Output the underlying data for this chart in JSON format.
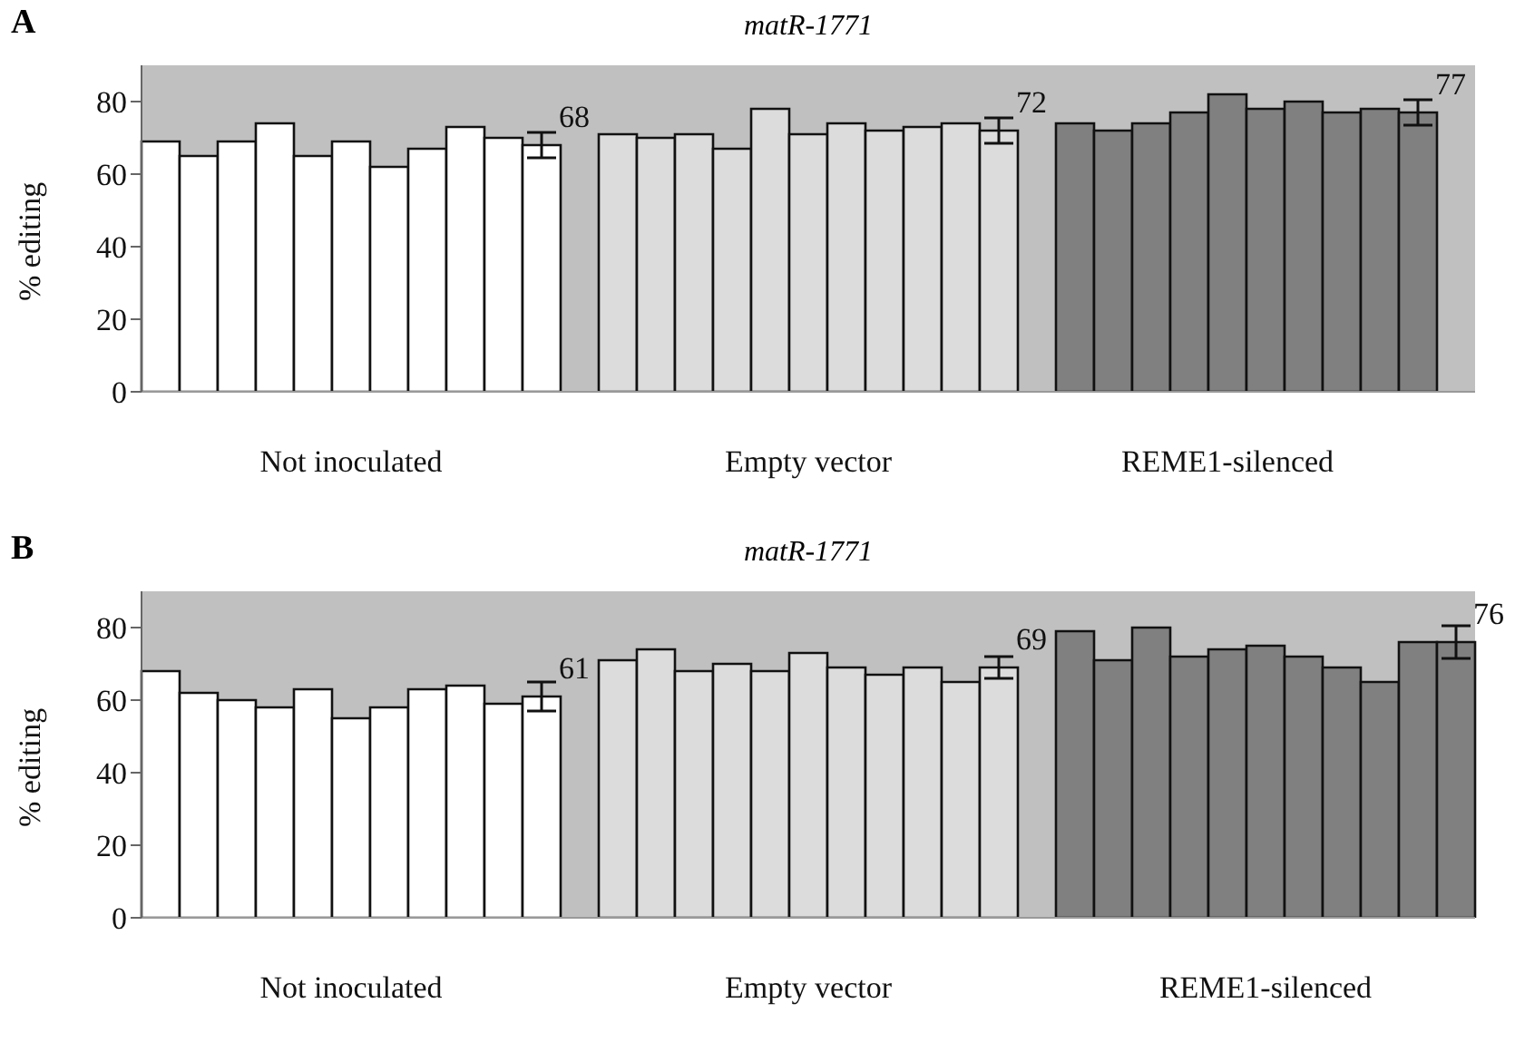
{
  "chart_data": [
    {
      "type": "bar",
      "title": "matR-1771",
      "ylabel": "% editing",
      "annotations": [
        "A"
      ],
      "categories": [
        null,
        null,
        null,
        null,
        null,
        "Not inoculated",
        null,
        null,
        null,
        null,
        null,
        null,
        null,
        null,
        null,
        null,
        null,
        "Empty vector",
        null,
        null,
        null,
        null,
        null,
        null,
        null,
        null,
        null,
        null,
        "REME1-silenced",
        null,
        null,
        null,
        null,
        null,
        null
      ],
      "values": [
        69,
        65,
        69,
        74,
        65,
        69,
        62,
        67,
        73,
        70,
        68,
        null,
        71,
        70,
        71,
        67,
        78,
        71,
        74,
        72,
        73,
        74,
        72,
        null,
        74,
        72,
        74,
        77,
        82,
        78,
        80,
        77,
        78,
        77,
        null
      ],
      "colors": [
        "#ffffff",
        "#ffffff",
        "#ffffff",
        "#ffffff",
        "#ffffff",
        "#ffffff",
        "#ffffff",
        "#ffffff",
        "#ffffff",
        "#ffffff",
        "#ffffff",
        null,
        "#dcdcdc",
        "#dcdcdc",
        "#dcdcdc",
        "#dcdcdc",
        "#dcdcdc",
        "#dcdcdc",
        "#dcdcdc",
        "#dcdcdc",
        "#dcdcdc",
        "#dcdcdc",
        "#dcdcdc",
        null,
        "#808080",
        "#808080",
        "#808080",
        "#808080",
        "#808080",
        "#808080",
        "#808080",
        "#808080",
        "#808080",
        "#808080",
        null
      ],
      "errors": [
        null,
        null,
        null,
        null,
        null,
        null,
        null,
        null,
        null,
        null,
        3.5,
        null,
        null,
        null,
        null,
        null,
        null,
        null,
        null,
        null,
        null,
        null,
        3.5,
        null,
        null,
        null,
        null,
        null,
        null,
        null,
        null,
        null,
        null,
        3.5,
        null
      ],
      "value_labels": [
        null,
        null,
        null,
        null,
        null,
        null,
        null,
        null,
        null,
        null,
        "68",
        null,
        null,
        null,
        null,
        null,
        null,
        null,
        null,
        null,
        null,
        null,
        "72",
        null,
        null,
        null,
        null,
        null,
        null,
        null,
        null,
        null,
        null,
        "77",
        null
      ],
      "ylim": [
        0,
        90
      ],
      "yticks": [
        0,
        20,
        40,
        60,
        80
      ],
      "grid": false,
      "legend": false
    },
    {
      "type": "bar",
      "title": "matR-1771",
      "ylabel": "% editing",
      "annotations": [
        "B"
      ],
      "categories": [
        null,
        null,
        null,
        null,
        null,
        "Not inoculated",
        null,
        null,
        null,
        null,
        null,
        null,
        null,
        null,
        null,
        null,
        null,
        "Empty vector",
        null,
        null,
        null,
        null,
        null,
        null,
        null,
        null,
        null,
        null,
        null,
        "REME1-silenced",
        null,
        null,
        null,
        null,
        null
      ],
      "values": [
        68,
        62,
        60,
        58,
        63,
        55,
        58,
        63,
        64,
        59,
        61,
        null,
        71,
        74,
        68,
        70,
        68,
        73,
        69,
        67,
        69,
        65,
        69,
        null,
        79,
        71,
        80,
        72,
        74,
        75,
        72,
        69,
        65,
        76,
        76
      ],
      "colors": [
        "#ffffff",
        "#ffffff",
        "#ffffff",
        "#ffffff",
        "#ffffff",
        "#ffffff",
        "#ffffff",
        "#ffffff",
        "#ffffff",
        "#ffffff",
        "#ffffff",
        null,
        "#dcdcdc",
        "#dcdcdc",
        "#dcdcdc",
        "#dcdcdc",
        "#dcdcdc",
        "#dcdcdc",
        "#dcdcdc",
        "#dcdcdc",
        "#dcdcdc",
        "#dcdcdc",
        "#dcdcdc",
        null,
        "#808080",
        "#808080",
        "#808080",
        "#808080",
        "#808080",
        "#808080",
        "#808080",
        "#808080",
        "#808080",
        "#808080",
        "#808080"
      ],
      "errors": [
        null,
        null,
        null,
        null,
        null,
        null,
        null,
        null,
        null,
        null,
        4,
        null,
        null,
        null,
        null,
        null,
        null,
        null,
        null,
        null,
        null,
        null,
        3,
        null,
        null,
        null,
        null,
        null,
        null,
        null,
        null,
        null,
        null,
        null,
        4.5
      ],
      "value_labels": [
        null,
        null,
        null,
        null,
        null,
        null,
        null,
        null,
        null,
        null,
        "61",
        null,
        null,
        null,
        null,
        null,
        null,
        null,
        null,
        null,
        null,
        null,
        "69",
        null,
        null,
        null,
        null,
        null,
        null,
        null,
        null,
        null,
        null,
        null,
        "76"
      ],
      "ylim": [
        0,
        90
      ],
      "yticks": [
        0,
        20,
        40,
        60,
        80
      ],
      "grid": false,
      "legend": false
    }
  ]
}
